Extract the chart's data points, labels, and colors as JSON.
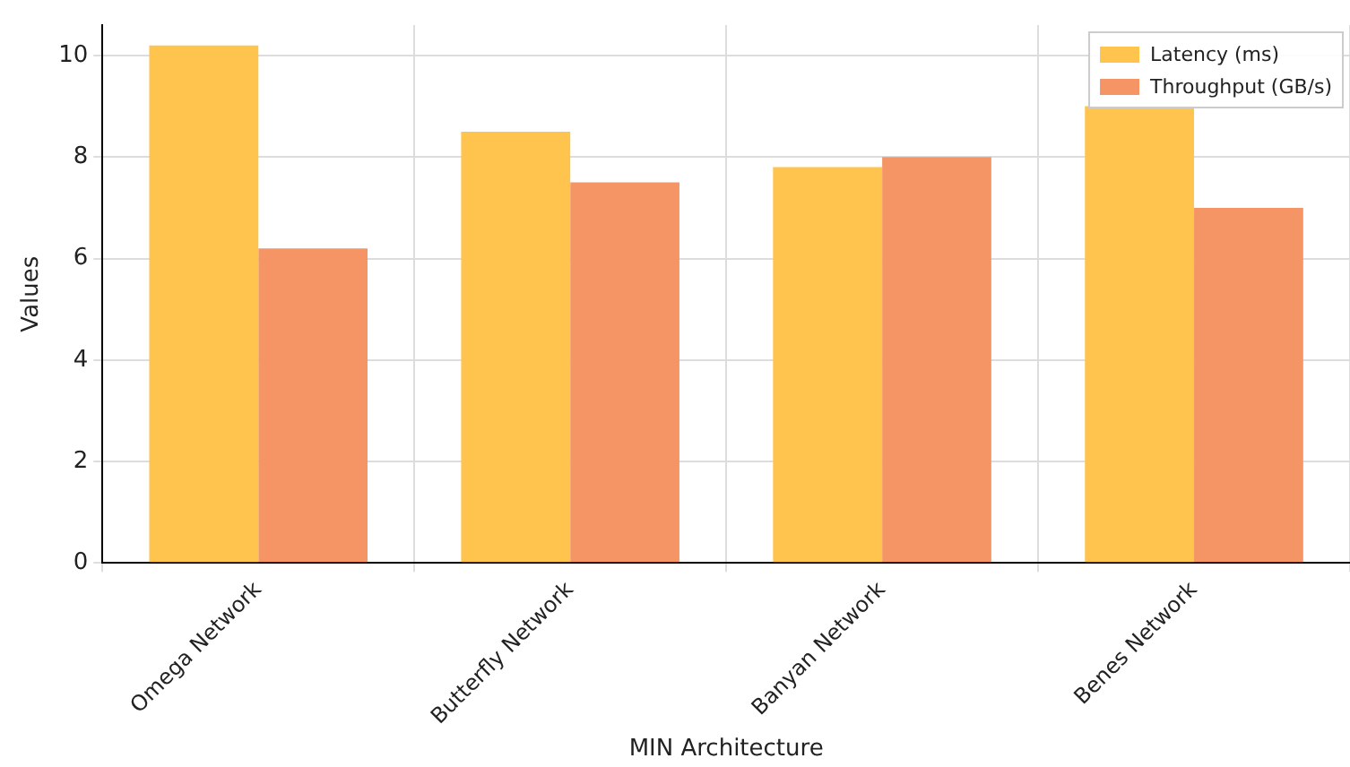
{
  "chart_data": {
    "type": "bar",
    "xlabel": "MIN Architecture",
    "ylabel": "Values",
    "categories": [
      "Omega Network",
      "Butterfly Network",
      "Banyan Network",
      "Benes Network"
    ],
    "series": [
      {
        "name": "Latency (ms)",
        "color": "#ffc44d",
        "values": [
          10.2,
          8.5,
          7.8,
          9.0
        ]
      },
      {
        "name": "Throughput (GB/s)",
        "color": "#f59566",
        "values": [
          6.2,
          7.5,
          8.0,
          7.0
        ]
      }
    ],
    "ylim": [
      0,
      10.6
    ],
    "yticks": [
      0,
      2,
      4,
      6,
      8,
      10
    ],
    "grid": true,
    "legend": "top right"
  }
}
